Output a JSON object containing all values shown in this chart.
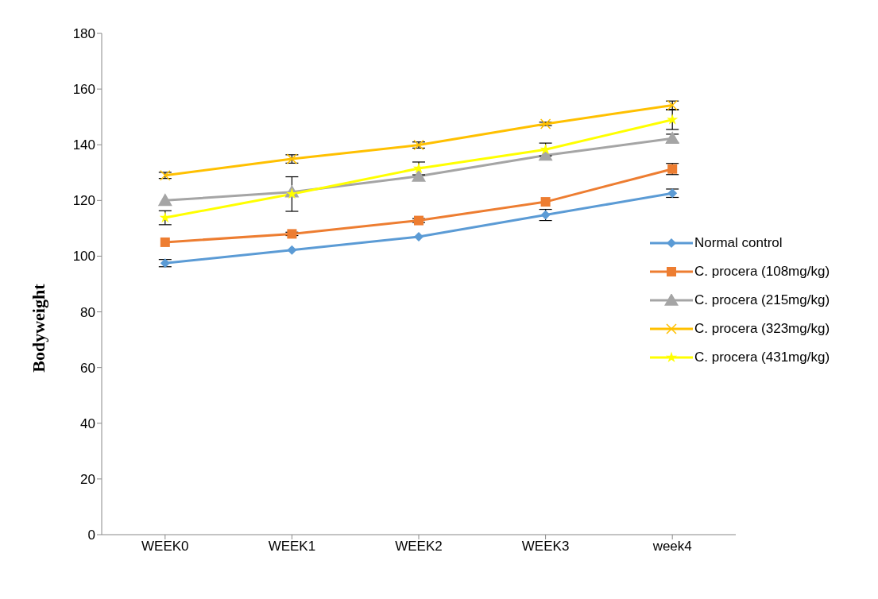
{
  "chart_data": {
    "type": "line",
    "ylabel": "Bodyweight",
    "categories": [
      "WEEK0",
      "WEEK1",
      "WEEK2",
      "WEEK3",
      "week4"
    ],
    "ylim": [
      0,
      180
    ],
    "yticks": [
      0,
      20,
      40,
      60,
      80,
      100,
      120,
      140,
      160,
      180
    ],
    "grid": false,
    "legend": "right",
    "line_style": "solid",
    "series": [
      {
        "name": "Normal control",
        "color": "#5b9bd5",
        "marker": "diamond",
        "values": [
          97.5,
          102.2,
          107,
          114.8,
          122.6
        ],
        "errors": [
          1.3,
          null,
          null,
          2,
          1.5
        ]
      },
      {
        "name": "C. procera (108mg/kg)",
        "color": "#ed7d31",
        "marker": "square",
        "values": [
          105,
          108,
          112.8,
          119.5,
          131.3
        ],
        "errors": [
          null,
          0.6,
          0.7,
          null,
          2
        ]
      },
      {
        "name": "C. procera (215mg/kg)",
        "color": "#a5a5a5",
        "marker": "triangle",
        "values": [
          120,
          123,
          128.7,
          136.2,
          142.3
        ],
        "errors": [
          null,
          null,
          null,
          null,
          1.5
        ]
      },
      {
        "name": "C. procera (323mg/kg)",
        "color": "#ffc000",
        "marker": "cross",
        "values": [
          129,
          134.9,
          139.9,
          147.5,
          154.2
        ],
        "errors": [
          1.1,
          1.5,
          1.1,
          0.6,
          1.5
        ]
      },
      {
        "name": "C. procera (431mg/kg)",
        "color": "#ffff00",
        "marker": "star",
        "values": [
          113.8,
          122.3,
          131.5,
          138.3,
          149
        ],
        "errors": [
          2.5,
          6.2,
          2.3,
          2.3,
          3.5
        ]
      }
    ]
  }
}
